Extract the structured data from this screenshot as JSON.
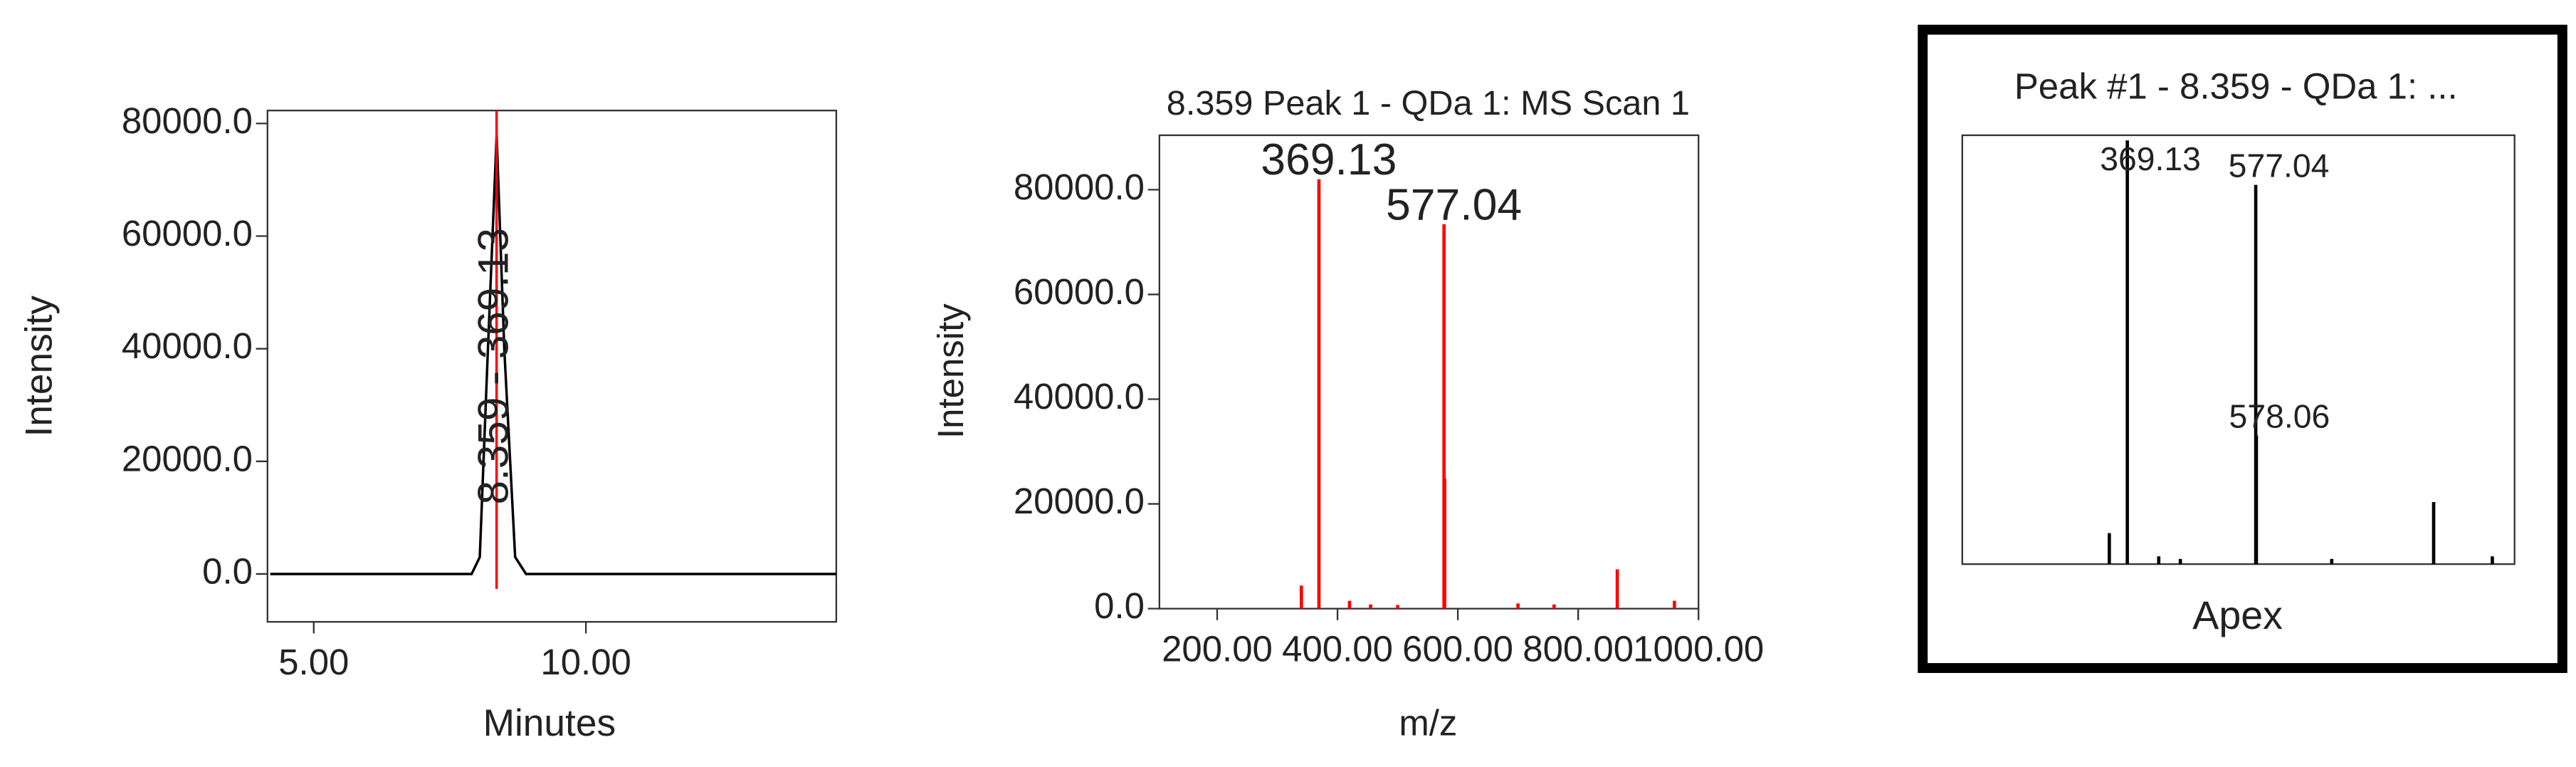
{
  "chart_data": [
    {
      "type": "line",
      "y_label": "Intensity",
      "x_label": "Minutes",
      "x": [
        4.2,
        6.0,
        7.9,
        8.05,
        8.2,
        8.36,
        8.5,
        8.7,
        8.9,
        11.0,
        14.6
      ],
      "values": [
        0,
        0,
        0,
        3000,
        40000,
        78000,
        40000,
        3000,
        0,
        0,
        0
      ],
      "color": "#000000",
      "annotations": [
        {
          "text": "8.359 - 369.13",
          "x": 8.359
        }
      ],
      "xlim": [
        4.15,
        14.6
      ],
      "ylim": [
        -8500,
        82300
      ],
      "xticks": [
        {
          "value": 5,
          "label": "5.00"
        },
        {
          "value": 10,
          "label": "10.00"
        }
      ],
      "yticks": [
        {
          "value": 0,
          "label": "0.0"
        },
        {
          "value": 20000,
          "label": "20000.0"
        },
        {
          "value": 40000,
          "label": "40000.0"
        },
        {
          "value": 60000,
          "label": "60000.0"
        },
        {
          "value": 80000,
          "label": "80000.0"
        }
      ]
    },
    {
      "type": "stem",
      "title": "8.359 Peak 1 - QDa 1: MS Scan 1",
      "y_label": "Intensity",
      "x_label": "m/z",
      "x": [
        340,
        369.13,
        420,
        455,
        500,
        577.04,
        578.06,
        700,
        760,
        865,
        960
      ],
      "values": [
        4400,
        82000,
        1500,
        800,
        700,
        73400,
        24900,
        1000,
        800,
        7500,
        1500
      ],
      "color": "#ff0000",
      "annotations": [
        {
          "text": "369.13",
          "x": 369.13
        },
        {
          "text": "577.04",
          "x": 577.04
        }
      ],
      "xlim": [
        104,
        1000
      ],
      "ylim": [
        0,
        90400
      ],
      "xticks": [
        {
          "value": 200,
          "label": "200.00"
        },
        {
          "value": 400,
          "label": "400.00"
        },
        {
          "value": 600,
          "label": "600.00"
        },
        {
          "value": 800,
          "label": "800.00"
        },
        {
          "value": 1000,
          "label": "1000.00"
        }
      ],
      "yticks": [
        {
          "value": 0,
          "label": "0.0"
        },
        {
          "value": 20000,
          "label": "20000.0"
        },
        {
          "value": 40000,
          "label": "40000.0"
        },
        {
          "value": 60000,
          "label": "60000.0"
        },
        {
          "value": 80000,
          "label": "80000.0"
        }
      ]
    },
    {
      "type": "stem",
      "title": "Peak #1 - 8.359 - QDa 1: ...",
      "caption": "Apex",
      "x": [
        340,
        369.13,
        420,
        455,
        577.04,
        578.06,
        700,
        865,
        960
      ],
      "values": [
        6000,
        82000,
        1500,
        1000,
        73400,
        24900,
        1000,
        12000,
        1500
      ],
      "color": "#000000",
      "annotations": [
        {
          "text": "369.13",
          "x": 369.13
        },
        {
          "text": "577.04",
          "x": 577.04
        },
        {
          "text": "578.06",
          "x": 578.06
        }
      ],
      "xlim": [
        102,
        996
      ],
      "ylim": [
        0,
        83000
      ]
    }
  ]
}
